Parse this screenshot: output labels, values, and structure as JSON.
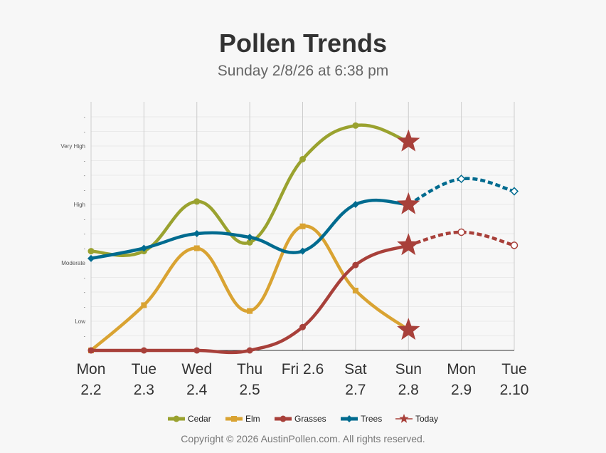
{
  "chart_data": {
    "type": "line",
    "title": "Pollen Trends",
    "subtitle": "Sunday 2/8/26 at 6:38 pm",
    "categories": [
      [
        "Mon",
        "2.2"
      ],
      [
        "Tue",
        "2.3"
      ],
      [
        "Wed",
        "2.4"
      ],
      [
        "Thu",
        "2.5"
      ],
      [
        "Fri 2.6",
        ""
      ],
      [
        "Sat",
        "2.7"
      ],
      [
        "Sun",
        "2.8"
      ],
      [
        "Mon",
        "2.9"
      ],
      [
        "Tue",
        "2.10"
      ]
    ],
    "ylim": [
      0,
      16
    ],
    "ytick_labels": [
      {
        "value": 2,
        "label": "Low"
      },
      {
        "value": 6,
        "label": "Moderate"
      },
      {
        "value": 10,
        "label": "High"
      },
      {
        "value": 14,
        "label": "Very High"
      }
    ],
    "minor_tick_label": "-",
    "today_index": 6,
    "series": [
      {
        "name": "Cedar",
        "color": "#9aa22f",
        "marker": "circle",
        "values": [
          6.8,
          6.8,
          10.2,
          7.4,
          13.1,
          15.4,
          14.3,
          null,
          null
        ]
      },
      {
        "name": "Elm",
        "color": "#d9a332",
        "marker": "square",
        "values": [
          0,
          3.1,
          7.0,
          2.7,
          8.5,
          4.1,
          1.4,
          null,
          null
        ]
      },
      {
        "name": "Grasses",
        "color": "#a8403a",
        "marker": "circle",
        "values": [
          0,
          0,
          0,
          0,
          1.6,
          5.85,
          7.2,
          8.1,
          7.2
        ]
      },
      {
        "name": "Trees",
        "color": "#006b8f",
        "marker": "diamond",
        "values": [
          6.3,
          7.0,
          8.0,
          7.75,
          6.8,
          10,
          10,
          11.75,
          10.9
        ]
      }
    ],
    "legend": [
      "Cedar",
      "Elm",
      "Grasses",
      "Trees",
      "Today"
    ],
    "legend_placement": "bottom",
    "today_color": "#a8403a"
  },
  "copyright": "Copyright © 2026 AustinPollen.com.  All rights reserved."
}
